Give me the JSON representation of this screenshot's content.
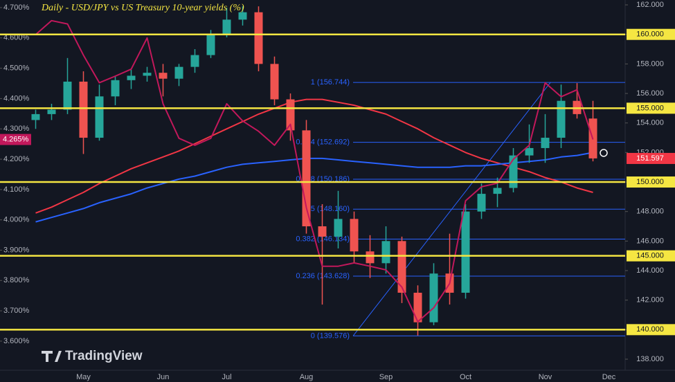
{
  "chart_data": {
    "type": "candlestick",
    "title": "Daily - USD/JPY vs US Treasury 10-year yields (%)",
    "logo": "TradingView",
    "categories": [
      null,
      null,
      null,
      "May",
      null,
      null,
      null,
      null,
      "Jun",
      null,
      null,
      null,
      "Jul",
      null,
      null,
      null,
      null,
      "Aug",
      null,
      null,
      null,
      null,
      "Sep",
      null,
      null,
      null,
      null,
      "Oct",
      null,
      null,
      null,
      null,
      "Nov",
      null,
      null,
      null,
      "Dec"
    ],
    "candles": {
      "axis": "y2",
      "up_color": "#26a69a",
      "down_color": "#ef5350",
      "open": [
        154.2,
        154.6,
        154.9,
        156.8,
        153.0,
        155.8,
        156.9,
        157.2,
        157.4,
        157.0,
        157.8,
        158.6,
        160.0,
        161.0,
        161.5,
        158.0,
        155.6,
        153.5,
        147.0,
        146.3,
        147.5,
        145.3,
        144.5,
        146.0,
        142.5,
        140.5,
        143.8,
        142.5,
        148.0,
        149.2,
        149.6,
        151.8,
        152.3,
        153.0,
        155.5,
        154.3,
        null
      ],
      "high": [
        154.9,
        155.3,
        158.4,
        157.5,
        156.6,
        157.2,
        157.6,
        157.8,
        158.0,
        158.0,
        159.0,
        160.3,
        161.8,
        161.9,
        161.9,
        158.5,
        156.0,
        154.2,
        148.5,
        149.4,
        148.0,
        146.4,
        147.0,
        146.3,
        143.0,
        144.5,
        146.5,
        148.5,
        149.9,
        150.3,
        152.3,
        153.9,
        154.6,
        156.6,
        156.7,
        155.5,
        null
      ],
      "low": [
        153.6,
        154.2,
        154.6,
        151.9,
        152.8,
        155.2,
        156.3,
        156.8,
        155.8,
        156.5,
        157.4,
        158.4,
        159.8,
        160.6,
        157.5,
        155.2,
        152.8,
        146.5,
        141.7,
        145.5,
        144.5,
        143.5,
        143.8,
        141.8,
        139.6,
        140.3,
        141.7,
        142.1,
        147.5,
        148.3,
        149.3,
        151.3,
        151.3,
        152.3,
        154.3,
        151.4,
        null
      ],
      "close": [
        154.6,
        154.9,
        156.8,
        153.0,
        155.8,
        156.9,
        157.2,
        157.4,
        157.0,
        157.8,
        158.6,
        160.0,
        161.0,
        161.5,
        158.0,
        155.6,
        153.5,
        147.0,
        146.3,
        147.5,
        145.3,
        144.5,
        146.0,
        142.5,
        140.5,
        143.8,
        142.5,
        148.0,
        149.2,
        149.6,
        151.8,
        152.3,
        153.0,
        155.5,
        154.6,
        151.6,
        null
      ]
    },
    "yield_line": {
      "color": "#c2185b",
      "values": [
        4.611,
        4.657,
        4.646,
        4.543,
        4.452,
        4.474,
        4.497,
        4.6,
        4.383,
        4.269,
        4.246,
        4.269,
        4.383,
        4.326,
        4.292,
        4.246,
        4.315,
        4.04,
        3.847,
        3.847,
        3.858,
        3.847,
        3.835,
        3.778,
        3.664,
        3.71,
        3.79,
        4.063,
        4.109,
        4.121,
        4.2,
        4.246,
        4.452,
        4.406,
        4.429,
        4.265,
        null
      ]
    },
    "moving_averages": [
      {
        "axis": "y2",
        "color": "#f23645",
        "values": [
          147.9,
          148.3,
          148.8,
          149.3,
          149.9,
          150.4,
          150.9,
          151.3,
          151.7,
          152.1,
          152.6,
          153.1,
          153.6,
          154.1,
          154.6,
          155.0,
          155.4,
          155.6,
          155.6,
          155.4,
          155.2,
          154.9,
          154.6,
          154.1,
          153.6,
          153.0,
          152.5,
          152.0,
          151.6,
          151.3,
          151.0,
          150.7,
          150.3,
          150.0,
          149.6,
          149.3,
          null
        ]
      },
      {
        "axis": "y2",
        "color": "#2962ff",
        "values": [
          147.3,
          147.6,
          147.9,
          148.2,
          148.6,
          148.9,
          149.2,
          149.6,
          149.9,
          150.2,
          150.4,
          150.7,
          151.0,
          151.2,
          151.3,
          151.4,
          151.5,
          151.6,
          151.6,
          151.5,
          151.4,
          151.3,
          151.2,
          151.1,
          151.0,
          151.0,
          151.0,
          151.1,
          151.1,
          151.2,
          151.3,
          151.4,
          151.5,
          151.7,
          151.8,
          152.0,
          null
        ]
      }
    ],
    "ylim": [
      3.504,
      4.725
    ],
    "yticks": [
      {
        "value": 3.6,
        "label": "3.600%"
      },
      {
        "value": 3.7,
        "label": "3.700%"
      },
      {
        "value": 3.8,
        "label": "3.800%"
      },
      {
        "value": 3.9,
        "label": "3.900%"
      },
      {
        "value": 4.0,
        "label": "4.000%"
      },
      {
        "value": 4.1,
        "label": "4.100%"
      },
      {
        "value": 4.2,
        "label": "4.200%"
      },
      {
        "value": 4.3,
        "label": "4.300%"
      },
      {
        "value": 4.4,
        "label": "4.400%"
      },
      {
        "value": 4.5,
        "label": "4.500%"
      },
      {
        "value": 4.6,
        "label": "4.600%"
      },
      {
        "value": 4.7,
        "label": "4.700%"
      }
    ],
    "y2lim": [
      137.25,
      162.33
    ],
    "y2ticks": [
      {
        "value": 138,
        "label": "138.000"
      },
      {
        "value": 140,
        "label": "140.000"
      },
      {
        "value": 142,
        "label": "142.000"
      },
      {
        "value": 144,
        "label": "144.000"
      },
      {
        "value": 146,
        "label": "146.000"
      },
      {
        "value": 148,
        "label": "148.000"
      },
      {
        "value": 150,
        "label": "150.000"
      },
      {
        "value": 152,
        "label": "152.000"
      },
      {
        "value": 154,
        "label": "154.000"
      },
      {
        "value": 156,
        "label": "156.000"
      },
      {
        "value": 158,
        "label": "158.000"
      },
      {
        "value": 160,
        "label": "160.000"
      },
      {
        "value": 162,
        "label": "162.000"
      }
    ],
    "levels": {
      "color": "#f5e642",
      "values": [
        160,
        155,
        150,
        145,
        140
      ],
      "value_labels": [
        "160.000",
        "155.000",
        "150.000",
        "145.000",
        "140.000"
      ]
    },
    "fib_levels": {
      "color": "#2962ff",
      "values": [
        156.744,
        152.692,
        150.186,
        148.16,
        146.134,
        143.628,
        139.576
      ],
      "value_labels": [
        "1 (156.744)",
        "0.764 (152.692)",
        "0.618 (150.186)",
        "0.5 (148.160)",
        "0.382 (146.134)",
        "0.236 (143.628)",
        "0 (139.576)"
      ]
    },
    "last_yield": {
      "value": 4.265,
      "label": "4.265%"
    },
    "last_price": 151.597
  }
}
